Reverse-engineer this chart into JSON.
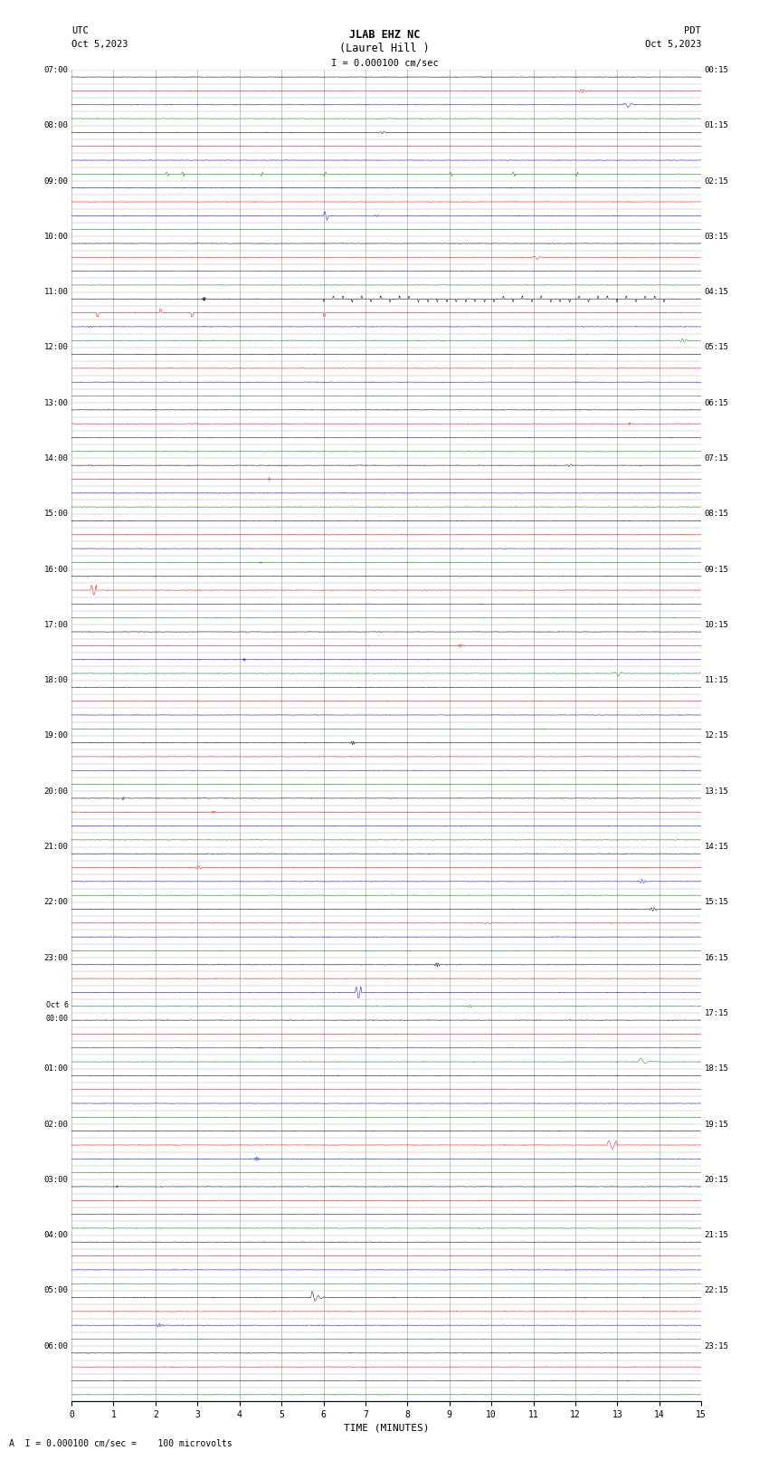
{
  "title_line1": "JLAB EHZ NC",
  "title_line2": "(Laurel Hill )",
  "scale_label": "I = 0.000100 cm/sec",
  "left_header": "UTC",
  "left_date": "Oct 5,2023",
  "right_header": "PDT",
  "right_date": "Oct 5,2023",
  "bottom_label": "A  I = 0.000100 cm/sec =    100 microvolts",
  "xlabel": "TIME (MINUTES)",
  "time_minutes": 15,
  "num_rows": 96,
  "color_cycle": [
    "black",
    "red",
    "blue",
    "green"
  ],
  "utc_labels": [
    "07:00",
    "",
    "",
    "",
    "08:00",
    "",
    "",
    "",
    "09:00",
    "",
    "",
    "",
    "10:00",
    "",
    "",
    "",
    "11:00",
    "",
    "",
    "",
    "12:00",
    "",
    "",
    "",
    "13:00",
    "",
    "",
    "",
    "14:00",
    "",
    "",
    "",
    "15:00",
    "",
    "",
    "",
    "16:00",
    "",
    "",
    "",
    "17:00",
    "",
    "",
    "",
    "18:00",
    "",
    "",
    "",
    "19:00",
    "",
    "",
    "",
    "20:00",
    "",
    "",
    "",
    "21:00",
    "",
    "",
    "",
    "22:00",
    "",
    "",
    "",
    "23:00",
    "",
    "",
    "",
    "Oct 6\n00:00",
    "",
    "",
    "",
    "01:00",
    "",
    "",
    "",
    "02:00",
    "",
    "",
    "",
    "03:00",
    "",
    "",
    "",
    "04:00",
    "",
    "",
    "",
    "05:00",
    "",
    "",
    "",
    "06:00",
    "",
    "",
    ""
  ],
  "pdt_labels": [
    "00:15",
    "",
    "",
    "",
    "01:15",
    "",
    "",
    "",
    "02:15",
    "",
    "",
    "",
    "03:15",
    "",
    "",
    "",
    "04:15",
    "",
    "",
    "",
    "05:15",
    "",
    "",
    "",
    "06:15",
    "",
    "",
    "",
    "07:15",
    "",
    "",
    "",
    "08:15",
    "",
    "",
    "",
    "09:15",
    "",
    "",
    "",
    "10:15",
    "",
    "",
    "",
    "11:15",
    "",
    "",
    "",
    "12:15",
    "",
    "",
    "",
    "13:15",
    "",
    "",
    "",
    "14:15",
    "",
    "",
    "",
    "15:15",
    "",
    "",
    "",
    "16:15",
    "",
    "",
    "",
    "17:15",
    "",
    "",
    "",
    "18:15",
    "",
    "",
    "",
    "19:15",
    "",
    "",
    "",
    "20:15",
    "",
    "",
    "",
    "21:15",
    "",
    "",
    "",
    "22:15",
    "",
    "",
    "",
    "23:15",
    "",
    "",
    ""
  ],
  "bg_color": "white",
  "grid_color": "#aaaaaa",
  "noise_amplitude": 0.025,
  "figsize": [
    8.5,
    16.13
  ],
  "samples_per_row": 2000,
  "row_sep": 1.0
}
